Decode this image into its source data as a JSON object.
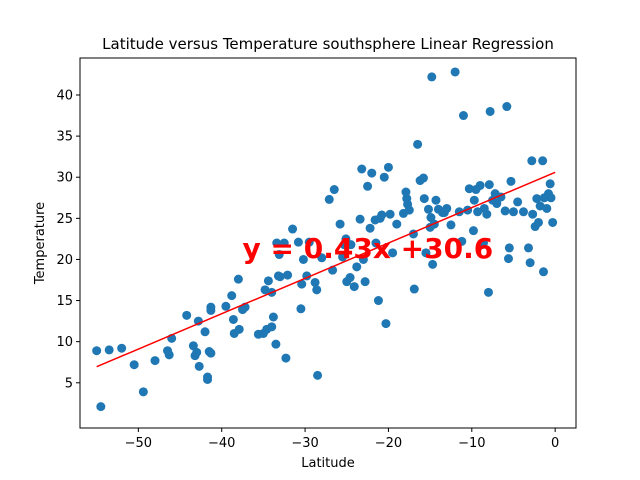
{
  "chart_data": {
    "type": "scatter",
    "title": "Latitude versus Temperature southsphere Linear Regression",
    "xlabel": "Latitude",
    "ylabel": "Temperature",
    "xlim": [
      -57,
      2.5
    ],
    "ylim": [
      -0.5,
      44.5
    ],
    "xticks": [
      -50,
      -40,
      -30,
      -20,
      -10,
      0
    ],
    "yticks": [
      5,
      10,
      15,
      20,
      25,
      30,
      35,
      40
    ],
    "point_color": "#1f77b4",
    "line_color": "#ff0000",
    "regression": {
      "slope": 0.43,
      "intercept": 30.6,
      "x_range": [
        -55,
        0
      ]
    },
    "annotation": {
      "text": "y = 0.43x +30.6",
      "x": -37.5,
      "y": 20.2
    },
    "points": [
      [
        -55,
        8.9
      ],
      [
        -54.5,
        2.1
      ],
      [
        -53.5,
        9
      ],
      [
        -52,
        9.2
      ],
      [
        -50.5,
        7.2
      ],
      [
        -49.4,
        3.9
      ],
      [
        -48,
        7.7
      ],
      [
        -46.5,
        8.9
      ],
      [
        -46.3,
        8.4
      ],
      [
        -46,
        10.4
      ],
      [
        -44.2,
        13.2
      ],
      [
        -43.4,
        9.5
      ],
      [
        -43.2,
        8.3
      ],
      [
        -43,
        8.7
      ],
      [
        -42.8,
        12.5
      ],
      [
        -42.7,
        7
      ],
      [
        -42,
        11.2
      ],
      [
        -41.7,
        5.7
      ],
      [
        -41.7,
        5.4
      ],
      [
        -41.5,
        8.8
      ],
      [
        -41.3,
        8.6
      ],
      [
        -41.3,
        14.2
      ],
      [
        -41.3,
        13.8
      ],
      [
        -39.5,
        14.3
      ],
      [
        -38.8,
        15.6
      ],
      [
        -38.6,
        12.7
      ],
      [
        -38.5,
        11
      ],
      [
        -38,
        17.6
      ],
      [
        -37.9,
        11.5
      ],
      [
        -37.5,
        13.9
      ],
      [
        -37.2,
        14.2
      ],
      [
        -35.6,
        10.9
      ],
      [
        -35,
        11
      ],
      [
        -34.8,
        16.3
      ],
      [
        -34.6,
        11.5
      ],
      [
        -34.4,
        17.4
      ],
      [
        -34,
        11.8
      ],
      [
        -34,
        16
      ],
      [
        -33.8,
        13
      ],
      [
        -33.5,
        9.7
      ],
      [
        -33.4,
        22
      ],
      [
        -33.1,
        20.6
      ],
      [
        -33.2,
        18
      ],
      [
        -33,
        17.9
      ],
      [
        -32.5,
        22
      ],
      [
        -32.3,
        8
      ],
      [
        -32.1,
        18.1
      ],
      [
        -31.5,
        23.7
      ],
      [
        -30.8,
        22.1
      ],
      [
        -30.5,
        14
      ],
      [
        -30.4,
        17
      ],
      [
        -30.2,
        20
      ],
      [
        -29.8,
        18
      ],
      [
        -29.5,
        22.1
      ],
      [
        -28.8,
        17.2
      ],
      [
        -28.6,
        16.3
      ],
      [
        -28.5,
        5.9
      ],
      [
        -28,
        20.2
      ],
      [
        -27.1,
        27.3
      ],
      [
        -26.7,
        18.7
      ],
      [
        -26.5,
        28.5
      ],
      [
        -25.8,
        24.3
      ],
      [
        -25.5,
        20.3
      ],
      [
        -25.3,
        21.8
      ],
      [
        -25.1,
        22.5
      ],
      [
        -25,
        17.3
      ],
      [
        -24.6,
        17.8
      ],
      [
        -24.5,
        21.8
      ],
      [
        -24.1,
        16.7
      ],
      [
        -23.8,
        19.1
      ],
      [
        -23.4,
        24.9
      ],
      [
        -23.2,
        31
      ],
      [
        -23,
        20
      ],
      [
        -22.8,
        17.3
      ],
      [
        -22.5,
        28.9
      ],
      [
        -22.2,
        23.8
      ],
      [
        -22,
        30.5
      ],
      [
        -21.6,
        24.8
      ],
      [
        -21.5,
        22
      ],
      [
        -21.2,
        15
      ],
      [
        -21,
        25
      ],
      [
        -20.8,
        25.4
      ],
      [
        -20.5,
        30
      ],
      [
        -20.3,
        12.2
      ],
      [
        -20,
        31.2
      ],
      [
        -19.8,
        25.5
      ],
      [
        -19.5,
        20.8
      ],
      [
        -19,
        24.3
      ],
      [
        -18.2,
        25.6
      ],
      [
        -17.9,
        28.2
      ],
      [
        -17.8,
        27.4
      ],
      [
        -17.7,
        26.7
      ],
      [
        -17.5,
        26
      ],
      [
        -17,
        23.1
      ],
      [
        -16.9,
        16.4
      ],
      [
        -16.5,
        34
      ],
      [
        -16.2,
        29.6
      ],
      [
        -15.8,
        29.9
      ],
      [
        -15.7,
        27.4
      ],
      [
        -15.5,
        20.8
      ],
      [
        -15.2,
        26.1
      ],
      [
        -15,
        23.9
      ],
      [
        -14.9,
        25.1
      ],
      [
        -14.8,
        42.2
      ],
      [
        -14.7,
        19.4
      ],
      [
        -14.5,
        24.3
      ],
      [
        -14.3,
        27.2
      ],
      [
        -14,
        26.1
      ],
      [
        -13.5,
        25.7
      ],
      [
        -13.3,
        25.7
      ],
      [
        -13,
        26.2
      ],
      [
        -12.5,
        24.2
      ],
      [
        -12,
        42.8
      ],
      [
        -11.5,
        25.8
      ],
      [
        -11.2,
        22.2
      ],
      [
        -11,
        37.5
      ],
      [
        -10.5,
        26
      ],
      [
        -10.3,
        28.6
      ],
      [
        -9.8,
        23.5
      ],
      [
        -9.7,
        27.2
      ],
      [
        -9.5,
        28.5
      ],
      [
        -9.3,
        25.8
      ],
      [
        -9,
        29
      ],
      [
        -8.8,
        21.8
      ],
      [
        -8.6,
        22
      ],
      [
        -8.5,
        26.2
      ],
      [
        -8.2,
        25.5
      ],
      [
        -8,
        16
      ],
      [
        -7.9,
        29.1
      ],
      [
        -7.8,
        38
      ],
      [
        -7.5,
        27.2
      ],
      [
        -7.2,
        28
      ],
      [
        -7,
        26.8
      ],
      [
        -6.5,
        27.6
      ],
      [
        -6,
        25.9
      ],
      [
        -5.8,
        38.6
      ],
      [
        -5.6,
        20.1
      ],
      [
        -5.5,
        21.4
      ],
      [
        -5.3,
        29.5
      ],
      [
        -5,
        25.8
      ],
      [
        -4.5,
        27
      ],
      [
        -3.8,
        25.8
      ],
      [
        -3.2,
        21.4
      ],
      [
        -3,
        19.6
      ],
      [
        -2.8,
        32
      ],
      [
        -2.7,
        25.5
      ],
      [
        -2.4,
        24
      ],
      [
        -2.2,
        27.4
      ],
      [
        -2,
        24.5
      ],
      [
        -1.8,
        26.5
      ],
      [
        -1.5,
        32
      ],
      [
        -1.4,
        18.5
      ],
      [
        -1.3,
        27.5
      ],
      [
        -1,
        26.2
      ],
      [
        -0.8,
        28
      ],
      [
        -0.6,
        29.2
      ],
      [
        -0.5,
        27.5
      ],
      [
        -0.3,
        24.5
      ]
    ]
  }
}
